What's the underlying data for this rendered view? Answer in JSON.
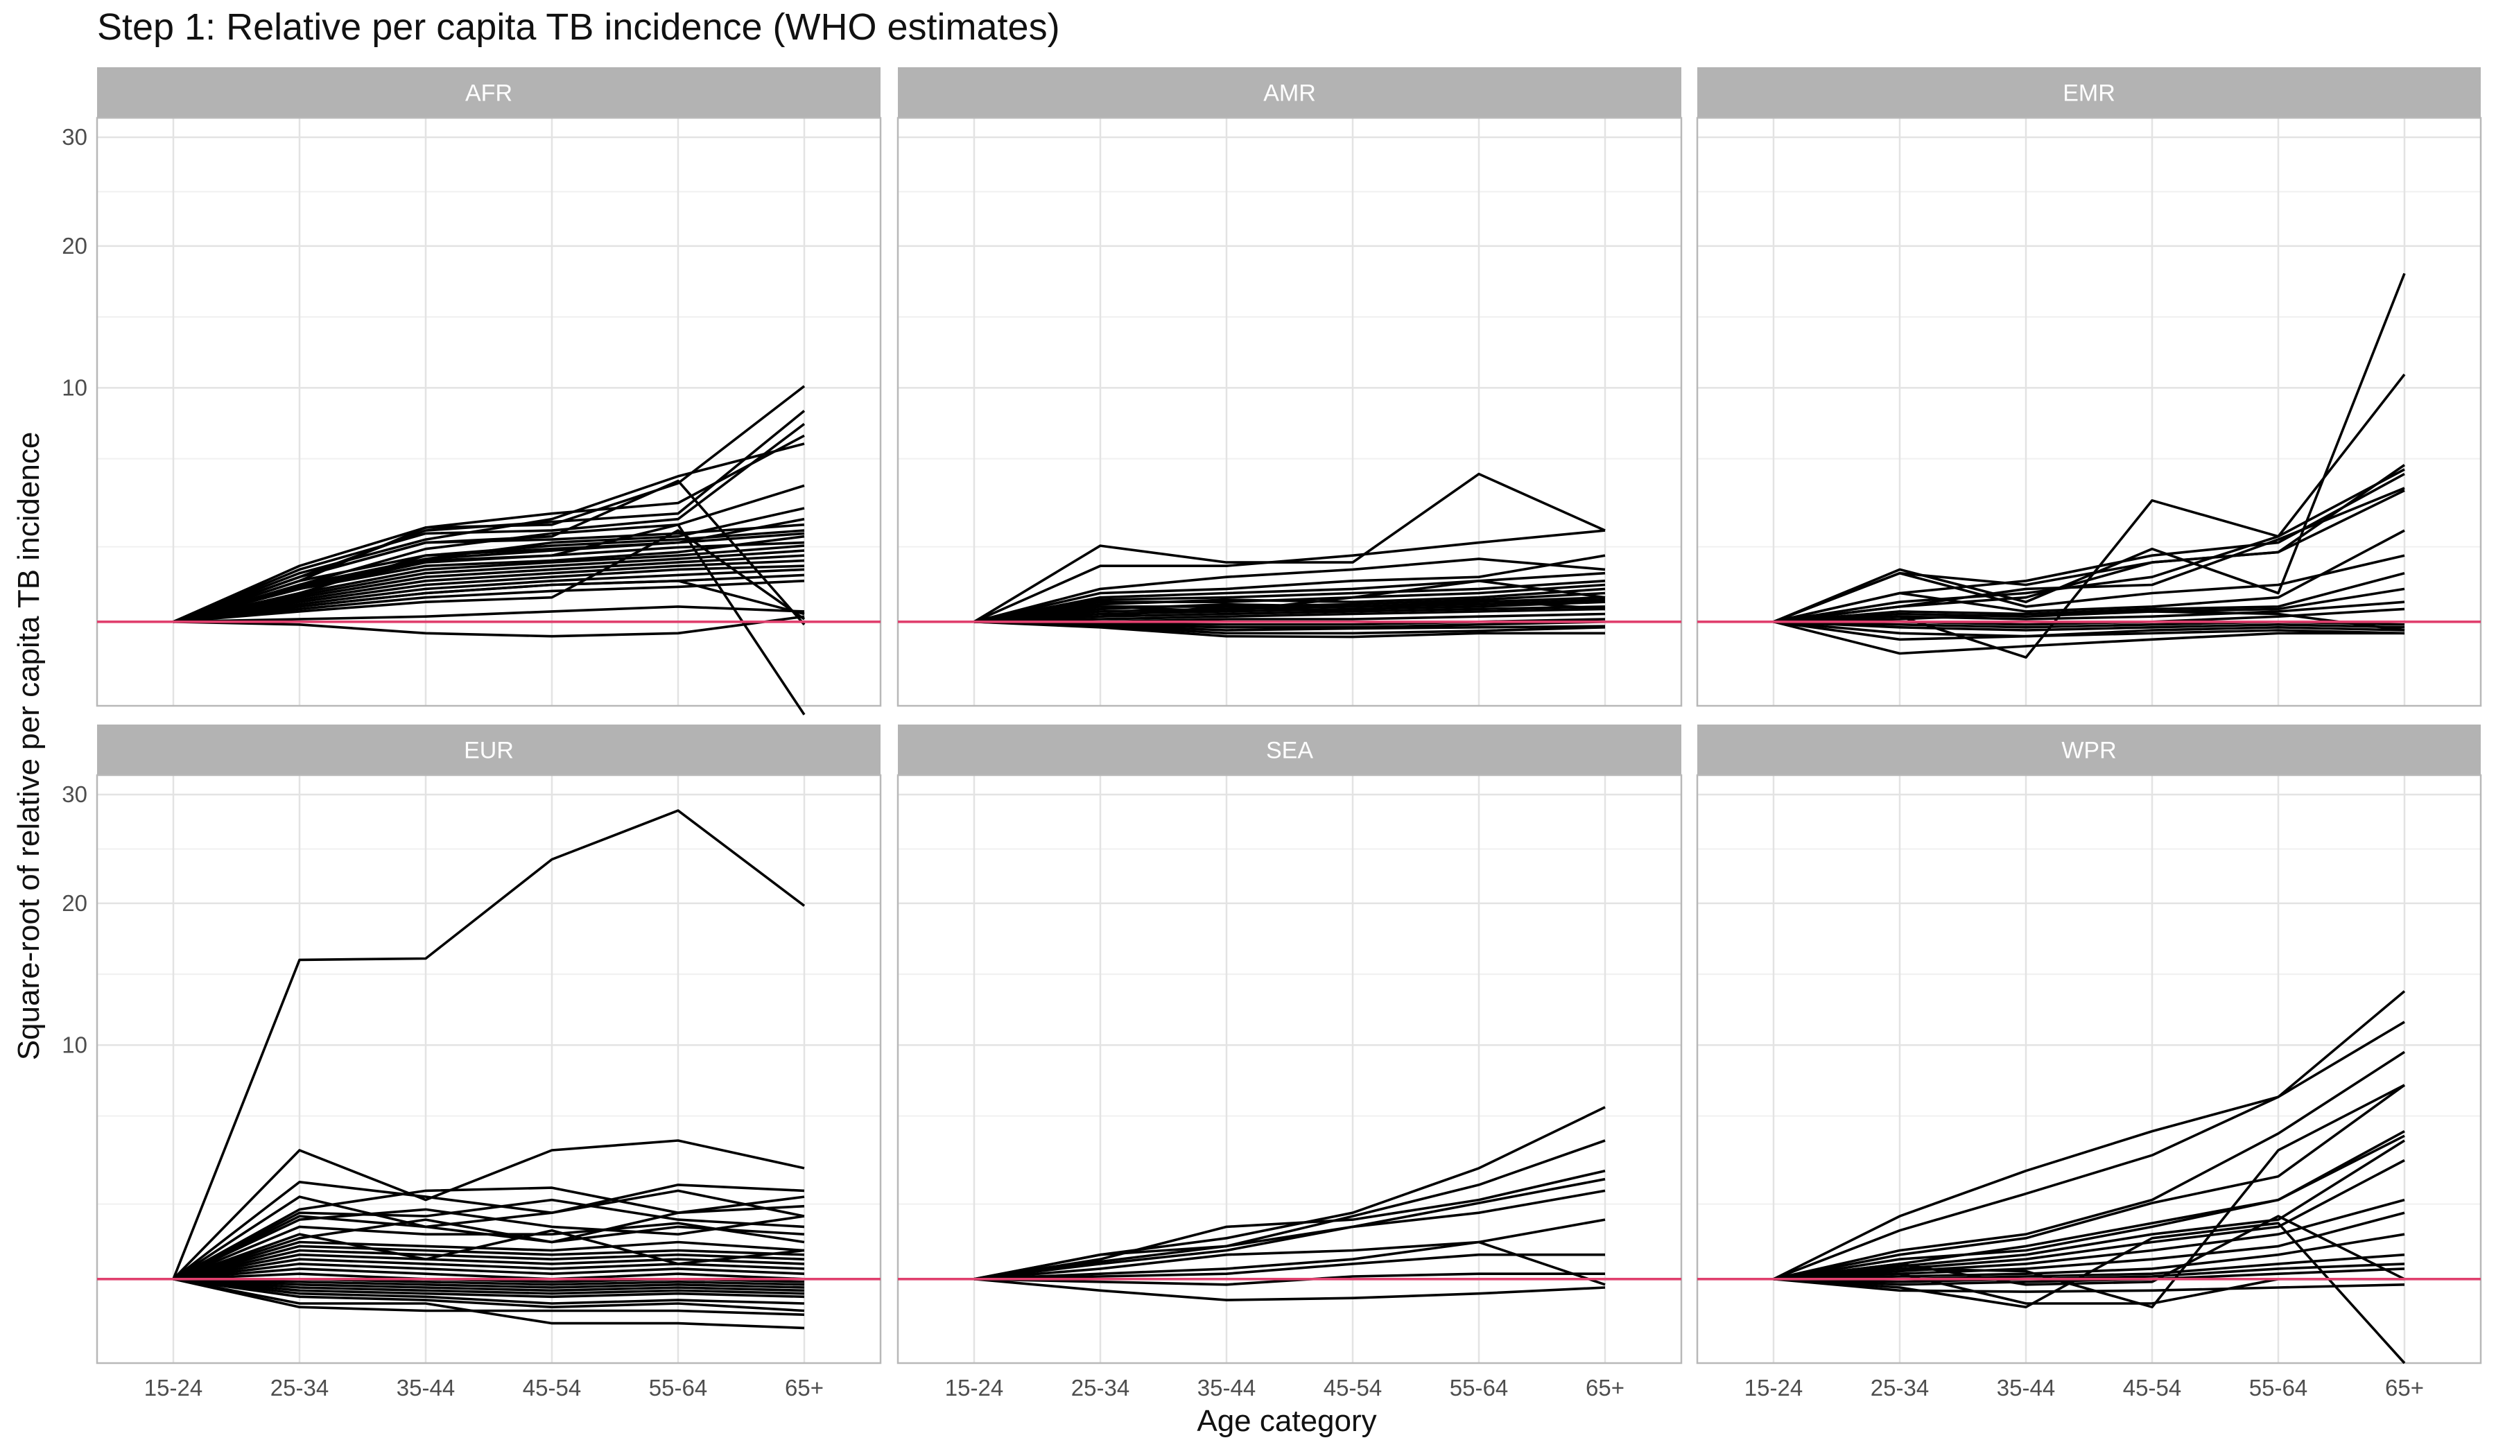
{
  "chart_data": {
    "type": "line",
    "title": "Step 1: Relative per capita TB incidence (WHO estimates)",
    "xlabel": "Age category",
    "ylabel": "Square-root of relative per capita TB incidence",
    "categories": [
      "15-24",
      "25-34",
      "35-44",
      "45-54",
      "55-64",
      "65+"
    ],
    "y_scale": "sqrt",
    "y_ticks": [
      10,
      20,
      30
    ],
    "ylim": [
      0.05,
      32
    ],
    "grid": true,
    "reference_line": {
      "y": 1,
      "color": "#E0406E"
    },
    "line_color": "#000000",
    "strip_color": "#B3B3B3",
    "panels": [
      {
        "name": "AFR",
        "series": [
          [
            1,
            1.7,
            2.3,
            2.45,
            2.7,
            3.2
          ],
          [
            1,
            2.0,
            3.0,
            3.1,
            3.3,
            3.6
          ],
          [
            1,
            1.9,
            2.6,
            2.9,
            3.1,
            3.4
          ],
          [
            1,
            1.8,
            2.5,
            2.75,
            3.0,
            3.3
          ],
          [
            1,
            1.75,
            2.45,
            2.6,
            2.85,
            3.0
          ],
          [
            1,
            1.6,
            2.2,
            2.4,
            2.6,
            2.9
          ],
          [
            1,
            1.55,
            2.1,
            2.3,
            2.5,
            2.75
          ],
          [
            1,
            1.5,
            2.0,
            2.2,
            2.4,
            2.6
          ],
          [
            1,
            1.45,
            1.9,
            2.1,
            2.3,
            2.45
          ],
          [
            1,
            1.4,
            1.8,
            2.0,
            2.2,
            2.3
          ],
          [
            1,
            1.35,
            1.7,
            1.9,
            2.05,
            2.2
          ],
          [
            1,
            1.3,
            1.6,
            1.8,
            1.9,
            2.05
          ],
          [
            1,
            1.25,
            1.5,
            1.65,
            1.75,
            1.9
          ],
          [
            1,
            2.2,
            3.3,
            3.4,
            3.8,
            8.0
          ],
          [
            1,
            2.3,
            3.5,
            3.6,
            5.2,
            10.1
          ],
          [
            1,
            2.1,
            3.1,
            3.8,
            5.5,
            7.0
          ],
          [
            1,
            1.9,
            3.5,
            4.0,
            4.4,
            7.4
          ],
          [
            1,
            2.0,
            3.4,
            3.7,
            4.0,
            8.7
          ],
          [
            1,
            1.8,
            2.8,
            3.3,
            3.6,
            5.1
          ],
          [
            1,
            1.7,
            2.5,
            3.0,
            3.2,
            4.2
          ],
          [
            1,
            1.6,
            2.6,
            2.8,
            3.0,
            3.8
          ],
          [
            1,
            2.0,
            3.0,
            3.2,
            5.3,
            0.95
          ],
          [
            1,
            1.7,
            2.4,
            2.6,
            3.6,
            0.02
          ],
          [
            1,
            1.2,
            1.4,
            1.5,
            3.4,
            1.05
          ],
          [
            1,
            1.3,
            1.6,
            1.8,
            1.9,
            1.15
          ],
          [
            1,
            1.05,
            1.1,
            1.2,
            1.3,
            1.2
          ],
          [
            1,
            0.95,
            0.8,
            0.75,
            0.8,
            1.1
          ]
        ]
      },
      {
        "name": "AMR",
        "series": [
          [
            1,
            2.9,
            2.4,
            2.4,
            5.6,
            3.4
          ],
          [
            1,
            2.3,
            2.3,
            2.6,
            3.0,
            3.4
          ],
          [
            1,
            1.7,
            2.0,
            2.2,
            2.5,
            2.2
          ],
          [
            1,
            1.6,
            1.7,
            1.9,
            2.0,
            2.6
          ],
          [
            1,
            1.5,
            1.6,
            1.7,
            1.9,
            2.1
          ],
          [
            1,
            1.45,
            1.5,
            1.6,
            1.7,
            1.9
          ],
          [
            1,
            1.4,
            1.4,
            1.5,
            1.6,
            1.8
          ],
          [
            1,
            1.35,
            1.45,
            1.4,
            1.5,
            1.7
          ],
          [
            1,
            1.3,
            1.3,
            1.35,
            1.45,
            1.6
          ],
          [
            1,
            1.25,
            1.35,
            1.3,
            1.4,
            1.5
          ],
          [
            1,
            1.2,
            1.25,
            1.3,
            1.35,
            1.45
          ],
          [
            1,
            1.15,
            1.2,
            1.25,
            1.3,
            1.4
          ],
          [
            1,
            1.1,
            1.15,
            1.2,
            1.25,
            1.3
          ],
          [
            1,
            1.05,
            1.1,
            1.15,
            1.2,
            1.25
          ],
          [
            1,
            1.0,
            1.05,
            1.05,
            1.1,
            1.15
          ],
          [
            1,
            0.97,
            0.95,
            0.95,
            1.0,
            1.05
          ],
          [
            1,
            0.95,
            0.9,
            0.9,
            0.95,
            1.0
          ],
          [
            1,
            0.93,
            0.85,
            0.88,
            0.9,
            0.92
          ],
          [
            1,
            0.92,
            0.8,
            0.8,
            0.84,
            0.9
          ],
          [
            1,
            0.9,
            0.75,
            0.74,
            0.8,
            0.8
          ],
          [
            1,
            1.3,
            1.2,
            1.5,
            1.9,
            1.5
          ],
          [
            1,
            1.1,
            1.3,
            1.2,
            1.45,
            1.25
          ]
        ]
      },
      {
        "name": "EMR",
        "series": [
          [
            1,
            2.2,
            1.4,
            2.8,
            1.6,
            17.8
          ],
          [
            1,
            1.4,
            1.6,
            2.0,
            3.2,
            10.8
          ],
          [
            1,
            2.1,
            1.8,
            2.4,
            2.7,
            6.0
          ],
          [
            1,
            1.6,
            1.9,
            2.6,
            3.0,
            5.6
          ],
          [
            1,
            1.3,
            1.7,
            1.8,
            3.1,
            5.0
          ],
          [
            1,
            1.3,
            1.5,
            2.4,
            2.7,
            4.9
          ],
          [
            1,
            2.1,
            1.3,
            1.6,
            1.8,
            2.6
          ],
          [
            1,
            1.6,
            1.2,
            1.3,
            1.5,
            3.4
          ],
          [
            1,
            1.2,
            1.15,
            1.25,
            1.3,
            2.1
          ],
          [
            1,
            1.15,
            1.1,
            1.2,
            1.25,
            1.7
          ],
          [
            1,
            1.1,
            1.05,
            1.1,
            1.2,
            1.4
          ],
          [
            1,
            1.0,
            0.95,
            1.0,
            1.1,
            1.25
          ],
          [
            1,
            0.95,
            0.9,
            0.95,
            1.0,
            0.95
          ],
          [
            1,
            0.9,
            0.85,
            0.9,
            0.95,
            0.9
          ],
          [
            1,
            0.8,
            0.75,
            0.85,
            0.9,
            0.85
          ],
          [
            1,
            0.7,
            0.75,
            0.8,
            0.85,
            0.8
          ],
          [
            1,
            0.5,
            0.6,
            0.7,
            0.8,
            0.8
          ],
          [
            1,
            1.1,
            0.45,
            4.5,
            3.2,
            5.8
          ],
          [
            1,
            1.05,
            1.15,
            1.2,
            1.15,
            0.85
          ]
        ]
      },
      {
        "name": "EUR",
        "series": [
          [
            1,
            15.6,
            15.7,
            23.8,
            28.4,
            19.8
          ],
          [
            1,
            4.8,
            3.0,
            4.8,
            5.2,
            4.1
          ],
          [
            1,
            3.6,
            3.1,
            2.6,
            3.3,
            2.5
          ],
          [
            1,
            2.7,
            3.3,
            3.4,
            2.6,
            3.1
          ],
          [
            1,
            2.6,
            2.5,
            3.0,
            2.4,
            2.2
          ],
          [
            1,
            2.5,
            2.2,
            2.6,
            3.5,
            3.3
          ],
          [
            1,
            2.4,
            2.7,
            2.2,
            2.0,
            2.5
          ],
          [
            1,
            2.2,
            2.0,
            2.0,
            2.3,
            1.8
          ],
          [
            1,
            1.9,
            2.4,
            1.8,
            2.2,
            2.0
          ],
          [
            1,
            1.8,
            1.7,
            1.6,
            1.8,
            1.6
          ],
          [
            1,
            1.7,
            1.6,
            1.5,
            1.6,
            1.5
          ],
          [
            1,
            1.6,
            1.5,
            1.4,
            1.5,
            1.4
          ],
          [
            1,
            1.5,
            1.4,
            1.3,
            1.4,
            1.3
          ],
          [
            1,
            1.4,
            1.3,
            1.2,
            1.3,
            1.2
          ],
          [
            1,
            1.3,
            1.2,
            1.1,
            1.2,
            1.1
          ],
          [
            1,
            1.2,
            1.1,
            1.0,
            1.1,
            1.0
          ],
          [
            1,
            1.1,
            1.0,
            0.95,
            1.0,
            0.95
          ],
          [
            1,
            1.0,
            0.95,
            0.9,
            0.95,
            0.9
          ],
          [
            1,
            0.95,
            0.9,
            0.85,
            0.9,
            0.85
          ],
          [
            1,
            0.9,
            0.85,
            0.8,
            0.85,
            0.8
          ],
          [
            1,
            0.85,
            0.8,
            0.75,
            0.8,
            0.75
          ],
          [
            1,
            0.8,
            0.75,
            0.7,
            0.75,
            0.7
          ],
          [
            1,
            0.75,
            0.7,
            0.6,
            0.65,
            0.6
          ],
          [
            1,
            0.7,
            0.65,
            0.55,
            0.6,
            0.5
          ],
          [
            1,
            0.6,
            0.6,
            0.35,
            0.35,
            0.3
          ],
          [
            1,
            0.55,
            0.5,
            0.5,
            0.5,
            0.45
          ],
          [
            1,
            3.1,
            2.2,
            1.8,
            2.6,
            2.8
          ],
          [
            1,
            2.0,
            1.4,
            2.1,
            1.3,
            1.6
          ]
        ]
      },
      {
        "name": "SEA",
        "series": [
          [
            1,
            1.5,
            1.9,
            2.6,
            4.1,
            6.7
          ],
          [
            1,
            1.5,
            1.7,
            2.5,
            3.5,
            5.2
          ],
          [
            1,
            1.4,
            2.2,
            2.4,
            3.0,
            4.0
          ],
          [
            1,
            1.35,
            1.7,
            2.2,
            2.9,
            3.7
          ],
          [
            1,
            1.3,
            1.6,
            2.2,
            2.6,
            3.3
          ],
          [
            1,
            1.2,
            1.5,
            1.6,
            1.8,
            2.4
          ],
          [
            1,
            1.1,
            1.2,
            1.4,
            1.8,
            0.9
          ],
          [
            1,
            1.05,
            1.1,
            1.3,
            1.5,
            1.5
          ],
          [
            1,
            0.95,
            0.9,
            1.05,
            1.1,
            1.1
          ],
          [
            1,
            0.8,
            0.65,
            0.68,
            0.75,
            0.85
          ]
        ]
      },
      {
        "name": "WPR",
        "series": [
          [
            1,
            2.5,
            4.0,
            5.6,
            7.2,
            13.4
          ],
          [
            1,
            2.1,
            3.2,
            4.6,
            7.2,
            11.4
          ],
          [
            1,
            1.6,
            2.0,
            3.0,
            5.5,
            9.6
          ],
          [
            1,
            1.5,
            1.9,
            2.9,
            3.8,
            7.8
          ],
          [
            1,
            1.4,
            1.6,
            2.2,
            3.0,
            5.6
          ],
          [
            1,
            1.3,
            1.7,
            2.3,
            3.0,
            5.4
          ],
          [
            1,
            1.25,
            1.5,
            2.0,
            2.4,
            5.2
          ],
          [
            1,
            1.2,
            1.4,
            1.8,
            2.2,
            4.4
          ],
          [
            1,
            1.15,
            1.3,
            1.6,
            2.0,
            3.0
          ],
          [
            1,
            1.1,
            1.2,
            1.4,
            1.7,
            2.6
          ],
          [
            1,
            1.05,
            1.1,
            1.2,
            1.5,
            2.0
          ],
          [
            1,
            1.0,
            1.05,
            1.1,
            1.3,
            1.5
          ],
          [
            1,
            0.95,
            1.0,
            1.05,
            1.2,
            1.3
          ],
          [
            1,
            0.9,
            0.95,
            1.0,
            1.1,
            1.2
          ],
          [
            1,
            0.85,
            0.55,
            1.9,
            2.3,
            0.05
          ],
          [
            1,
            1.3,
            0.9,
            0.95,
            2.5,
            1.0
          ],
          [
            1,
            1.1,
            0.6,
            0.6,
            1.0,
            1.0
          ],
          [
            1,
            0.8,
            0.78,
            0.8,
            0.85,
            0.9
          ],
          [
            1,
            1.2,
            1.15,
            0.55,
            4.8,
            7.8
          ]
        ]
      }
    ]
  }
}
